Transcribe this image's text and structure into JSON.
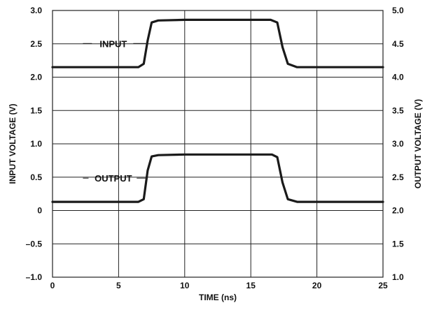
{
  "chart_data": {
    "type": "line",
    "title": "",
    "xlabel": "TIME (ns)",
    "ylabel_left": "INPUT VOLTAGE (V)",
    "ylabel_right": "OUTPUT VOLTAGE (V)",
    "xlim": [
      0,
      25
    ],
    "ylim_left": [
      -1.0,
      3.0
    ],
    "ylim_right": [
      1.0,
      5.0
    ],
    "grid": true,
    "x_ticks": [
      "0",
      "5",
      "10",
      "15",
      "20",
      "25"
    ],
    "y_left_ticks": [
      "3.0",
      "2.5",
      "2.0",
      "1.5",
      "1.0",
      "0.5",
      "0",
      "–0.5",
      "–1.0"
    ],
    "y_right_ticks": [
      "5.0",
      "4.5",
      "4.0",
      "3.5",
      "3.0",
      "2.5",
      "2.0",
      "1.5",
      "1.0"
    ],
    "series": [
      {
        "name": "INPUT",
        "axis": "left",
        "x": [
          0,
          6.5,
          6.9,
          7.2,
          7.5,
          8.0,
          10,
          15,
          16.5,
          17.0,
          17.4,
          17.8,
          18.5,
          25
        ],
        "y": [
          2.15,
          2.15,
          2.2,
          2.55,
          2.82,
          2.85,
          2.86,
          2.86,
          2.86,
          2.82,
          2.45,
          2.2,
          2.15,
          2.15
        ]
      },
      {
        "name": "OUTPUT",
        "axis": "right",
        "x": [
          0,
          6.5,
          6.9,
          7.2,
          7.5,
          8.0,
          10,
          15,
          16.6,
          17.0,
          17.4,
          17.8,
          18.5,
          25
        ],
        "y": [
          2.13,
          2.13,
          2.17,
          2.6,
          2.81,
          2.83,
          2.84,
          2.84,
          2.84,
          2.8,
          2.42,
          2.17,
          2.13,
          2.13
        ]
      }
    ]
  }
}
